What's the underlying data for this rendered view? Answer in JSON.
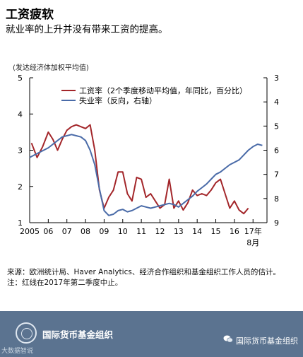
{
  "header": {
    "title": "工资疲软",
    "subtitle": "就业率的上升并没有带来工资的提高。"
  },
  "chart_data": {
    "type": "line",
    "y_unit_label": "(发达经济体加权平均值)",
    "x_tick_labels": [
      "2005",
      "06",
      "07",
      "08",
      "09",
      "10",
      "11",
      "12",
      "13",
      "14",
      "15",
      "16",
      "17年"
    ],
    "x_last_tick_sublabel": "8月",
    "xlim": [
      2005,
      2017.75
    ],
    "y_left": {
      "ylim": [
        1,
        5
      ],
      "ticks": [
        "1",
        "2",
        "3",
        "4",
        "5"
      ]
    },
    "y_right": {
      "ylim": [
        9,
        3
      ],
      "inverted": true,
      "ticks": [
        "3",
        "4",
        "5",
        "6",
        "7",
        "8",
        "9"
      ]
    },
    "grid": false,
    "legend_position": "top-center",
    "series": [
      {
        "name": "工资率（2个季度移动平均值，年同比，百分比）",
        "axis": "left",
        "color": "#a3262a",
        "x": [
          2005.1,
          2005.4,
          2005.7,
          2006.0,
          2006.25,
          2006.5,
          2006.75,
          2007.0,
          2007.25,
          2007.5,
          2007.75,
          2008.0,
          2008.25,
          2008.5,
          2008.75,
          2009.0,
          2009.25,
          2009.5,
          2009.75,
          2010.0,
          2010.25,
          2010.5,
          2010.75,
          2011.0,
          2011.25,
          2011.5,
          2011.75,
          2012.0,
          2012.25,
          2012.5,
          2012.75,
          2013.0,
          2013.25,
          2013.5,
          2013.75,
          2014.0,
          2014.25,
          2014.5,
          2014.75,
          2015.0,
          2015.25,
          2015.5,
          2015.75,
          2016.0,
          2016.25,
          2016.5,
          2016.75,
          2017.0,
          2017.25
        ],
        "y": [
          3.2,
          2.8,
          3.1,
          3.5,
          3.3,
          3.0,
          3.3,
          3.55,
          3.65,
          3.7,
          3.65,
          3.6,
          3.7,
          3.0,
          1.9,
          1.4,
          1.7,
          1.9,
          2.4,
          2.4,
          1.8,
          1.6,
          2.25,
          2.2,
          1.7,
          1.8,
          1.6,
          1.4,
          1.5,
          2.2,
          1.4,
          1.6,
          1.35,
          1.55,
          1.9,
          1.75,
          1.8,
          1.75,
          1.9,
          2.1,
          2.2,
          1.8,
          1.4,
          1.6,
          1.35,
          1.25,
          1.4,
          null,
          null
        ]
      },
      {
        "name": "失业率（反向，右轴）",
        "axis": "right",
        "color": "#4a6ba8",
        "x": [
          2005.0,
          2005.25,
          2005.5,
          2005.75,
          2006.0,
          2006.25,
          2006.5,
          2006.75,
          2007.0,
          2007.25,
          2007.5,
          2007.75,
          2008.0,
          2008.25,
          2008.5,
          2008.75,
          2009.0,
          2009.25,
          2009.5,
          2009.75,
          2010.0,
          2010.25,
          2010.5,
          2010.75,
          2011.0,
          2011.25,
          2011.5,
          2011.75,
          2012.0,
          2012.25,
          2012.5,
          2012.75,
          2013.0,
          2013.25,
          2013.5,
          2013.75,
          2014.0,
          2014.25,
          2014.5,
          2014.75,
          2015.0,
          2015.25,
          2015.5,
          2015.75,
          2016.0,
          2016.25,
          2016.5,
          2016.75,
          2017.0,
          2017.25,
          2017.5
        ],
        "y": [
          6.3,
          6.2,
          6.1,
          6.0,
          5.9,
          5.75,
          5.6,
          5.45,
          5.4,
          5.35,
          5.4,
          5.45,
          5.6,
          6.0,
          6.6,
          7.6,
          8.5,
          8.7,
          8.65,
          8.5,
          8.45,
          8.55,
          8.5,
          8.4,
          8.3,
          8.35,
          8.4,
          8.35,
          8.3,
          8.25,
          8.2,
          8.25,
          8.35,
          8.2,
          8.05,
          7.9,
          7.7,
          7.55,
          7.4,
          7.2,
          7.0,
          6.9,
          6.75,
          6.6,
          6.5,
          6.4,
          6.2,
          6.0,
          5.85,
          5.75,
          5.8
        ]
      }
    ]
  },
  "notes": {
    "source": "来源：欧洲统计局、Haver Analytics、经济合作组织和基金组织工作人员的估计。",
    "note": "注：红线在2017年第二季度中止。"
  },
  "footer": {
    "org_name": "国际货币基金组织",
    "watermark": "大数据智说",
    "wechat_account": "国际货币基金组织"
  }
}
